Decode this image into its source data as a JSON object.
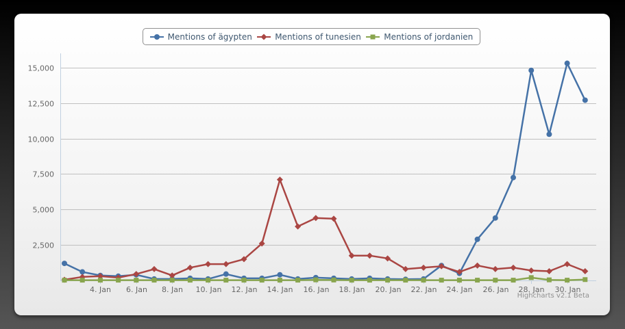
{
  "chart_data": {
    "type": "line",
    "title": "",
    "xlabel": "",
    "ylabel": "",
    "ylim": [
      0,
      16000
    ],
    "y_ticks": [
      2500,
      5000,
      7500,
      10000,
      12500,
      15000
    ],
    "y_tick_labels": [
      "2,500",
      "5,000",
      "7,500",
      "10,000",
      "12,500",
      "15,000"
    ],
    "x_start_day": 2,
    "x_end_day": 31,
    "x_ticks": [
      4,
      6,
      8,
      10,
      12,
      14,
      16,
      18,
      20,
      22,
      24,
      26,
      28,
      30
    ],
    "x_tick_labels": [
      "4. Jan",
      "6. Jan",
      "8. Jan",
      "10. Jan",
      "12. Jan",
      "14. Jan",
      "16. Jan",
      "18. Jan",
      "20. Jan",
      "22. Jan",
      "24. Jan",
      "26. Jan",
      "28. Jan",
      "30. Jan"
    ],
    "grid": true,
    "legend_position": "top-center",
    "series": [
      {
        "name": "Mentions of ägypten",
        "color": "#4572A7",
        "marker": "circle",
        "values": [
          1200,
          600,
          350,
          300,
          400,
          100,
          100,
          150,
          100,
          450,
          150,
          150,
          400,
          100,
          200,
          150,
          100,
          150,
          100,
          80,
          100,
          1050,
          500,
          2900,
          4400,
          7250,
          14800,
          10300,
          15300,
          12700
        ]
      },
      {
        "name": "Mentions of tunesien",
        "color": "#AA4643",
        "marker": "diamond",
        "values": [
          50,
          250,
          300,
          200,
          450,
          800,
          350,
          900,
          1150,
          1150,
          1500,
          2600,
          7100,
          3800,
          4400,
          4350,
          1750,
          1750,
          1550,
          800,
          900,
          1000,
          600,
          1050,
          800,
          900,
          700,
          650,
          1150,
          650
        ]
      },
      {
        "name": "Mentions of jordanien",
        "color": "#89A54E",
        "marker": "square",
        "values": [
          20,
          20,
          20,
          20,
          20,
          20,
          20,
          20,
          20,
          20,
          20,
          20,
          20,
          20,
          40,
          30,
          20,
          20,
          20,
          20,
          20,
          20,
          20,
          20,
          20,
          20,
          200,
          40,
          20,
          60
        ]
      }
    ]
  },
  "credits": "Highcharts v2.1 Beta"
}
